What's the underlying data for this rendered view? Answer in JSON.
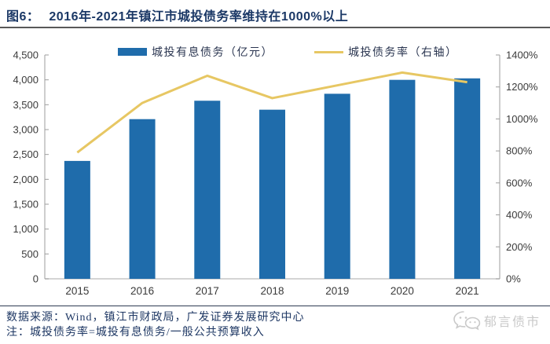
{
  "header": {
    "figure_label": "图6：",
    "title": "2016年-2021年镇江市城投债务率维持在1000%以上"
  },
  "chart_data": {
    "type": "bar+line",
    "title": "2016年-2021年镇江市城投债务率维持在1000%以上",
    "categories": [
      "2015",
      "2016",
      "2017",
      "2018",
      "2019",
      "2020",
      "2021"
    ],
    "series": [
      {
        "name": "城投有息债务（亿元）",
        "type": "bar",
        "axis": "left",
        "values": [
          2370,
          3210,
          3580,
          3400,
          3720,
          4000,
          4030
        ]
      },
      {
        "name": "城投债务率（右轴）",
        "type": "line",
        "axis": "right",
        "values": [
          790,
          1100,
          1270,
          1130,
          1210,
          1290,
          1230
        ]
      }
    ],
    "left_axis": {
      "min": 0,
      "max": 4500,
      "step": 500,
      "tick_labels": [
        "0",
        "500",
        "1,000",
        "1,500",
        "2,000",
        "2,500",
        "3,000",
        "3,500",
        "4,000",
        "4,500"
      ]
    },
    "right_axis": {
      "min": 0,
      "max": 1400,
      "step": 200,
      "tick_labels": [
        "0%",
        "200%",
        "400%",
        "600%",
        "800%",
        "1000%",
        "1200%",
        "1400%"
      ]
    },
    "grid": false,
    "legend_position": "top"
  },
  "footer": {
    "source": "数据来源：Wind，镇江市财政局，广发证券发展研究中心",
    "note": "注：城投债务率=城投有息债务/一般公共预算收入",
    "watermark": "郁言债市"
  },
  "colors": {
    "bar": "#1F6CAB",
    "line": "#E7C763",
    "title": "#1B3866",
    "axis_line": "#9D9D9D",
    "bottom_axis_line": "#C6C6C6",
    "axis_text": "#3A3A3A",
    "title_rule": "#595959",
    "note_rule": "#2E3B52",
    "note_text": "#1F3864",
    "watermark": "#C9C9C9"
  }
}
